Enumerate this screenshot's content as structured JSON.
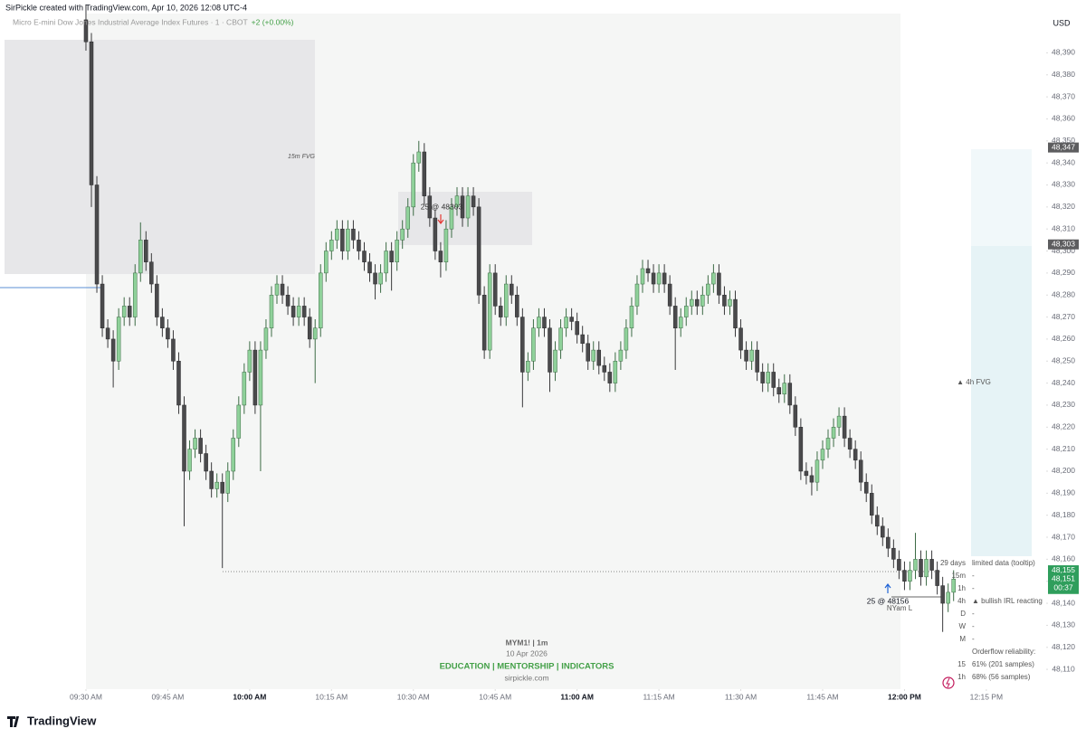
{
  "header": {
    "text": "SirPickle created with TradingView.com, Apr 10, 2026 12:08 UTC-4"
  },
  "footer": {
    "logo": "TradingView"
  },
  "chart_data": {
    "type": "candlestick",
    "symbol": "Micro E-mini Dow Jones Industrial Average Index Futures · 1 · CBOT",
    "change": "+2 (+0.00%)",
    "currency": "USD",
    "up_color": "#8fd19a",
    "down_color": "#4a4a4c",
    "grid": false,
    "ylim": [
      48101,
      48414
    ],
    "xlim": [
      -15.75,
      175.8
    ],
    "yticks": [
      {
        "value": 48110,
        "label": "48,110"
      },
      {
        "value": 48120,
        "label": "48,120"
      },
      {
        "value": 48130,
        "label": "48,130"
      },
      {
        "value": 48140,
        "label": "48,140"
      },
      {
        "value": 48150,
        "label": "48,150"
      },
      {
        "value": 48160,
        "label": "48,160"
      },
      {
        "value": 48170,
        "label": "48,170"
      },
      {
        "value": 48180,
        "label": "48,180"
      },
      {
        "value": 48190,
        "label": "48,190"
      },
      {
        "value": 48200,
        "label": "48,200"
      },
      {
        "value": 48210,
        "label": "48,210"
      },
      {
        "value": 48220,
        "label": "48,220"
      },
      {
        "value": 48230,
        "label": "48,230"
      },
      {
        "value": 48240,
        "label": "48,240"
      },
      {
        "value": 48250,
        "label": "48,250"
      },
      {
        "value": 48260,
        "label": "48,260"
      },
      {
        "value": 48270,
        "label": "48,270"
      },
      {
        "value": 48280,
        "label": "48,280"
      },
      {
        "value": 48290,
        "label": "48,290"
      },
      {
        "value": 48300,
        "label": "48,300"
      },
      {
        "value": 48310,
        "label": "48,310"
      },
      {
        "value": 48320,
        "label": "48,320"
      },
      {
        "value": 48330,
        "label": "48,330"
      },
      {
        "value": 48340,
        "label": "48,340"
      },
      {
        "value": 48350,
        "label": "48,350"
      },
      {
        "value": 48360,
        "label": "48,360"
      },
      {
        "value": 48370,
        "label": "48,370"
      },
      {
        "value": 48380,
        "label": "48,380"
      },
      {
        "value": 48390,
        "label": "48,390"
      }
    ],
    "xticks": [
      {
        "value": 0,
        "label": "09:30 AM"
      },
      {
        "value": 15,
        "label": "09:45 AM"
      },
      {
        "value": 30,
        "label": "10:00 AM"
      },
      {
        "value": 45,
        "label": "10:15 AM"
      },
      {
        "value": 60,
        "label": "10:30 AM"
      },
      {
        "value": 75,
        "label": "10:45 AM"
      },
      {
        "value": 90,
        "label": "11:00 AM"
      },
      {
        "value": 105,
        "label": "11:15 AM"
      },
      {
        "value": 120,
        "label": "11:30 AM"
      },
      {
        "value": 135,
        "label": "11:45 AM"
      },
      {
        "value": 150,
        "label": "12:00 PM"
      },
      {
        "value": 165,
        "label": "12:15 PM"
      }
    ],
    "open": [
      48405,
      48395,
      48330,
      48285,
      48265,
      48260,
      48250,
      48270,
      48275,
      48270,
      48290,
      48305,
      48295,
      48285,
      48270,
      48265,
      48260,
      48250,
      48230,
      48200,
      48210,
      48215,
      48208,
      48200,
      48192,
      48195,
      48190,
      48200,
      48215,
      48230,
      48245,
      48255,
      48230,
      48255,
      48265,
      48280,
      48285,
      48280,
      48275,
      48270,
      48275,
      48270,
      48260,
      48265,
      48290,
      48300,
      48305,
      48310,
      48300,
      48310,
      48305,
      48300,
      48295,
      48290,
      48285,
      48290,
      48300,
      48295,
      48305,
      48310,
      48320,
      48340,
      48345,
      48325,
      48315,
      48300,
      48295,
      48310,
      48320,
      48325,
      48315,
      48325,
      48320,
      48280,
      48255,
      48290,
      48275,
      48270,
      48285,
      48280,
      48270,
      48245,
      48250,
      48265,
      48270,
      48265,
      48245,
      48255,
      48265,
      48270,
      48268,
      48262,
      48258,
      48250,
      48255,
      48248,
      48245,
      48240,
      48250,
      48255,
      48265,
      48275,
      48285,
      48292,
      48290,
      48285,
      48290,
      48285,
      48275,
      48265,
      48270,
      48275,
      48278,
      48275,
      48280,
      48285,
      48290,
      48280,
      48275,
      48278,
      48265,
      48255,
      48250,
      48255,
      48245,
      48240,
      48245,
      48238,
      48235,
      48240,
      48230,
      48220,
      48200,
      48198,
      48195,
      48205,
      48210,
      48215,
      48220,
      48225,
      48215,
      48210,
      48205,
      48195,
      48190,
      48180,
      48175,
      48170,
      48165,
      48160,
      48155,
      48150,
      48155,
      48160,
      48152,
      48160,
      48155,
      48148,
      48140,
      48145
    ],
    "high": [
      48412,
      48399,
      48334,
      48289,
      48269,
      48264,
      48274,
      48279,
      48279,
      48294,
      48313,
      48309,
      48299,
      48289,
      48274,
      48269,
      48264,
      48254,
      48234,
      48214,
      48219,
      48219,
      48212,
      48204,
      48199,
      48199,
      48204,
      48219,
      48234,
      48249,
      48259,
      48259,
      48259,
      48269,
      48284,
      48289,
      48289,
      48284,
      48279,
      48279,
      48279,
      48274,
      48269,
      48294,
      48304,
      48309,
      48314,
      48314,
      48314,
      48314,
      48309,
      48304,
      48299,
      48294,
      48294,
      48304,
      48304,
      48309,
      48314,
      48324,
      48344,
      48350,
      48349,
      48329,
      48319,
      48304,
      48314,
      48324,
      48329,
      48329,
      48329,
      48329,
      48324,
      48284,
      48294,
      48294,
      48279,
      48289,
      48289,
      48284,
      48274,
      48254,
      48269,
      48274,
      48274,
      48269,
      48259,
      48269,
      48274,
      48274,
      48272,
      48266,
      48262,
      48259,
      48259,
      48252,
      48249,
      48254,
      48259,
      48269,
      48279,
      48289,
      48296,
      48296,
      48294,
      48294,
      48294,
      48289,
      48279,
      48274,
      48279,
      48282,
      48282,
      48284,
      48289,
      48294,
      48294,
      48284,
      48282,
      48282,
      48269,
      48259,
      48259,
      48259,
      48249,
      48249,
      48249,
      48242,
      48244,
      48244,
      48234,
      48224,
      48204,
      48202,
      48209,
      48214,
      48219,
      48224,
      48229,
      48229,
      48219,
      48214,
      48209,
      48199,
      48194,
      48184,
      48179,
      48174,
      48169,
      48164,
      48159,
      48159,
      48172,
      48164,
      48164,
      48164,
      48159,
      48152,
      48149,
      48155
    ],
    "low": [
      48391,
      48320,
      48281,
      48261,
      48256,
      48238,
      48246,
      48266,
      48266,
      48266,
      48286,
      48291,
      48281,
      48266,
      48261,
      48256,
      48246,
      48226,
      48175,
      48196,
      48206,
      48204,
      48196,
      48188,
      48188,
      48156,
      48186,
      48196,
      48211,
      48226,
      48241,
      48226,
      48200,
      48251,
      48261,
      48276,
      48276,
      48271,
      48266,
      48266,
      48266,
      48256,
      48240,
      48261,
      48286,
      48296,
      48301,
      48296,
      48296,
      48301,
      48296,
      48291,
      48286,
      48278,
      48281,
      48286,
      48282,
      48291,
      48301,
      48306,
      48316,
      48336,
      48321,
      48311,
      48296,
      48288,
      48291,
      48306,
      48316,
      48311,
      48311,
      48316,
      48276,
      48251,
      48251,
      48271,
      48266,
      48266,
      48276,
      48266,
      48229,
      48241,
      48246,
      48261,
      48261,
      48236,
      48241,
      48251,
      48261,
      48264,
      48258,
      48254,
      48246,
      48246,
      48244,
      48241,
      48236,
      48236,
      48246,
      48251,
      48261,
      48271,
      48281,
      48286,
      48281,
      48281,
      48281,
      48271,
      48246,
      48261,
      48266,
      48271,
      48271,
      48271,
      48276,
      48281,
      48276,
      48271,
      48271,
      48261,
      48251,
      48246,
      48246,
      48241,
      48236,
      48236,
      48234,
      48231,
      48231,
      48226,
      48216,
      48196,
      48194,
      48189,
      48191,
      48201,
      48206,
      48211,
      48216,
      48211,
      48206,
      48201,
      48191,
      48186,
      48176,
      48171,
      48166,
      48161,
      48156,
      48151,
      48146,
      48146,
      48151,
      48148,
      48148,
      48151,
      48144,
      48127,
      48136,
      48141
    ],
    "close": [
      48395,
      48330,
      48285,
      48265,
      48260,
      48250,
      48270,
      48275,
      48270,
      48290,
      48305,
      48295,
      48285,
      48270,
      48265,
      48260,
      48250,
      48230,
      48200,
      48210,
      48215,
      48208,
      48200,
      48192,
      48195,
      48190,
      48200,
      48215,
      48230,
      48245,
      48255,
      48230,
      48255,
      48265,
      48280,
      48285,
      48280,
      48275,
      48270,
      48275,
      48270,
      48260,
      48265,
      48290,
      48300,
      48305,
      48310,
      48300,
      48310,
      48305,
      48300,
      48295,
      48290,
      48285,
      48290,
      48300,
      48295,
      48305,
      48310,
      48320,
      48340,
      48345,
      48325,
      48315,
      48300,
      48295,
      48310,
      48320,
      48325,
      48315,
      48325,
      48320,
      48280,
      48255,
      48290,
      48275,
      48270,
      48285,
      48280,
      48270,
      48245,
      48250,
      48265,
      48270,
      48265,
      48245,
      48255,
      48265,
      48270,
      48268,
      48262,
      48258,
      48250,
      48255,
      48248,
      48245,
      48240,
      48250,
      48255,
      48265,
      48275,
      48285,
      48292,
      48290,
      48285,
      48290,
      48285,
      48275,
      48265,
      48270,
      48275,
      48278,
      48275,
      48280,
      48285,
      48290,
      48280,
      48275,
      48278,
      48265,
      48255,
      48250,
      48255,
      48245,
      48240,
      48245,
      48238,
      48235,
      48240,
      48230,
      48220,
      48200,
      48198,
      48195,
      48205,
      48210,
      48215,
      48220,
      48225,
      48215,
      48210,
      48205,
      48195,
      48190,
      48180,
      48175,
      48170,
      48165,
      48160,
      48155,
      48150,
      48155,
      48160,
      48152,
      48160,
      48155,
      48148,
      48140,
      48145,
      48151
    ],
    "price_labels": [
      {
        "value": 48347,
        "label": "48,347",
        "color": "#5d5d5f"
      },
      {
        "value": 48303,
        "label": "48,303",
        "color": "#5d5d5f"
      },
      {
        "value": 48155,
        "label": "48,155",
        "color": "#2f9e5c"
      },
      {
        "value": 48151,
        "label": "48,151",
        "color": "#2f9e5c",
        "countdown": "00:37"
      }
    ],
    "annotations": [
      "15m FVG",
      "25 @ 48303",
      "25 @ 48156",
      "NYam L",
      "▲ 4h FVG"
    ],
    "watermark": [
      "MYM1! | 1m",
      "10 Apr 2026",
      "EDUCATION | MENTORSHIP | INDICATORS",
      "sirpickle.com"
    ],
    "table": {
      "rows": [
        [
          "29 days",
          "limited data (tooltip)"
        ],
        [
          "15m",
          "-"
        ],
        [
          "1h",
          "-"
        ],
        [
          "4h",
          "▲ bullish IRL reacting"
        ],
        [
          "D",
          "-"
        ],
        [
          "W",
          "-"
        ],
        [
          "M",
          "-"
        ],
        [
          "Orderflow reliability:"
        ],
        [
          "15",
          "61% (201 samples)"
        ],
        [
          "1h",
          "68% (56 samples)"
        ]
      ]
    }
  }
}
